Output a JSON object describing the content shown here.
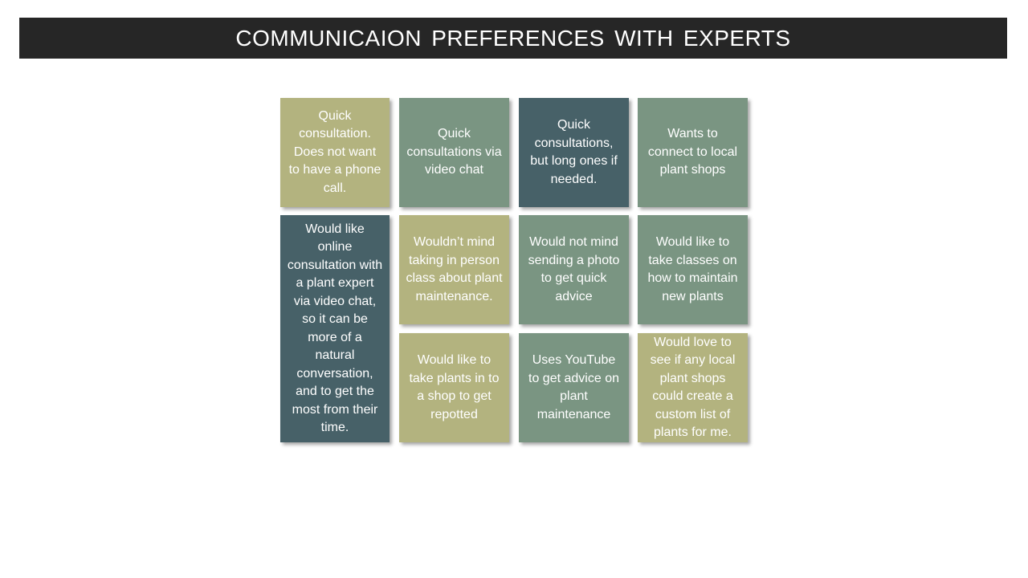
{
  "slide": {
    "title": "COMMUNICAION  PREFERENCES  WITH  EXPERTS"
  },
  "colors": {
    "title_bar": "#262626",
    "olive": "#b3b37f",
    "sage": "#7a9582",
    "slate": "#476168"
  },
  "notes": [
    {
      "id": "note-1",
      "color": "olive",
      "text": "Quick consultation. Does not want to have a phone call."
    },
    {
      "id": "note-2",
      "color": "sage",
      "text": "Quick consultations via video chat"
    },
    {
      "id": "note-3",
      "color": "slate",
      "text": "Quick consultations, but long ones if needed."
    },
    {
      "id": "note-4",
      "color": "sage",
      "text": "Wants to connect to local plant shops"
    },
    {
      "id": "note-5",
      "color": "slate",
      "text": "Would like online consultation with a plant expert via video chat, so it can be more of a natural conversation, and to get the most from their time."
    },
    {
      "id": "note-6",
      "color": "olive",
      "text": "Wouldn’t mind taking in person class about plant maintenance."
    },
    {
      "id": "note-7",
      "color": "sage",
      "text": "Would not mind sending a photo to get quick advice"
    },
    {
      "id": "note-8",
      "color": "sage",
      "text": "Would like to take classes on how to maintain new plants"
    },
    {
      "id": "note-9",
      "color": "olive",
      "text": "Would like to take plants in to a shop to get repotted"
    },
    {
      "id": "note-10",
      "color": "sage",
      "text": "Uses YouTube to get advice on plant maintenance"
    },
    {
      "id": "note-11",
      "color": "olive",
      "text": "Would love to see if any local plant shops could create a custom list of plants for me."
    }
  ]
}
